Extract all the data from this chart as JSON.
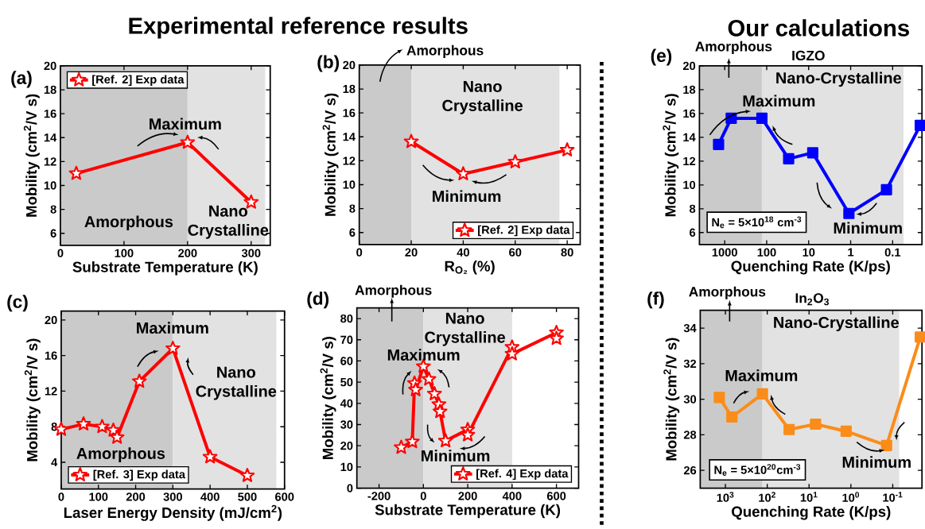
{
  "chart_data": [
    {
      "type": "line",
      "xlabel": "Substrate Temperature (K)",
      "ylabel": "Mobility (cm$^{2}$/V s)",
      "xlim": [
        0,
        330
      ],
      "xticks": [
        0,
        100,
        200,
        300
      ],
      "ylim": [
        5,
        20
      ],
      "yticks": [
        6,
        8,
        10,
        12,
        14,
        16,
        18,
        20
      ],
      "marker": "star",
      "legend": "top left",
      "series": [
        {
          "name": "[Ref. 2] Exp data",
          "color": "#ff0000",
          "x": [
            25,
            200,
            300
          ],
          "values": [
            11.0,
            13.6,
            8.6
          ]
        }
      ],
      "bands": [
        {
          "axis": "x",
          "from": 0,
          "to": 200,
          "color": "#cacaca"
        },
        {
          "axis": "x",
          "from": 200,
          "to": 322,
          "color": "#e2e2e2"
        }
      ],
      "annotations": [
        "Experimental reference results",
        "(a)",
        "Maximum",
        "Amorphous",
        "Nano Crystalline"
      ]
    },
    {
      "type": "line",
      "xlabel": "R$_{O₂}$ (%)",
      "ylabel": "Mobility (cm$^{2}$/V s)",
      "xlim": [
        0,
        85
      ],
      "xticks": [
        0,
        20,
        40,
        60,
        80
      ],
      "ylim": [
        5,
        20
      ],
      "yticks": [
        6,
        8,
        10,
        12,
        14,
        16,
        18,
        20
      ],
      "marker": "star",
      "legend": "bottom right",
      "series": [
        {
          "name": "[Ref. 2] Exp data",
          "color": "#ff0000",
          "x": [
            20,
            40,
            60,
            80
          ],
          "values": [
            13.6,
            10.9,
            11.9,
            12.9
          ]
        }
      ],
      "bands": [
        {
          "axis": "x",
          "from": 0,
          "to": 20,
          "color": "#cacaca"
        },
        {
          "axis": "x",
          "from": 20,
          "to": 77,
          "color": "#e2e2e2"
        }
      ],
      "annotations": [
        "(b)",
        "Amorphous",
        "Nano Crystalline",
        "Minimum"
      ]
    },
    {
      "type": "line",
      "xlabel": "Laser Energy Density (mJ/cm$^{2}$)",
      "ylabel": "Mobility (cm$^{2}$/V s)",
      "xlim": [
        0,
        600
      ],
      "xticks": [
        0,
        100,
        200,
        300,
        400,
        500,
        600
      ],
      "ylim": [
        1,
        21
      ],
      "yticks": [
        4,
        8,
        12,
        16,
        20
      ],
      "marker": "star",
      "legend": "bottom left",
      "series": [
        {
          "name": "[Ref. 3] Exp data",
          "color": "#ff0000",
          "x": [
            0,
            60,
            110,
            140,
            150,
            210,
            300,
            400,
            500
          ],
          "values": [
            7.7,
            8.3,
            8.0,
            7.6,
            6.8,
            13.1,
            16.8,
            4.6,
            2.5
          ]
        }
      ],
      "bands": [
        {
          "axis": "x",
          "from": 0,
          "to": 300,
          "color": "#cacaca"
        },
        {
          "axis": "x",
          "from": 300,
          "to": 578,
          "color": "#e2e2e2"
        }
      ],
      "annotations": [
        "(c)",
        "Maximum",
        "Nano Crystalline",
        "Amorphous"
      ]
    },
    {
      "type": "line",
      "xlabel": "Substrate Temperature (K)",
      "ylabel": "Mobility (cm$^{2}$/V s)",
      "xlim": [
        -300,
        700
      ],
      "xticks": [
        -200,
        0,
        200,
        400,
        600
      ],
      "ylim": [
        0,
        85
      ],
      "yticks": [
        0,
        10,
        20,
        30,
        40,
        50,
        60,
        70,
        80
      ],
      "marker": "star",
      "legend": "bottom right",
      "series": [
        {
          "name": "[Ref. 4] Exp data",
          "color": "#ff0000",
          "x": [
            -100,
            -50,
            -40,
            -35,
            0,
            25,
            50,
            70,
            75,
            100,
            200,
            200,
            400,
            400,
            600,
            600
          ],
          "values": [
            19.2,
            21.9,
            49.5,
            46.4,
            57.4,
            51.4,
            44.5,
            39.5,
            36.1,
            22.3,
            27.6,
            25.1,
            66.5,
            63.3,
            73.4,
            70.6
          ]
        }
      ],
      "bands": [
        {
          "axis": "x",
          "from": -300,
          "to": 0,
          "color": "#cacaca"
        },
        {
          "axis": "x",
          "from": 0,
          "to": 400,
          "color": "#e2e2e2"
        }
      ],
      "annotations": [
        "(d)",
        "Amorphous",
        "Nano Crystalline",
        "Maximum",
        "Minimum"
      ]
    },
    {
      "type": "line",
      "xlabel": "Quenching Rate (K/ps)",
      "ylabel": "Mobility (cm$^{2}$/V s)",
      "log": "x",
      "xlim": [
        4000,
        0.02
      ],
      "xticks": [
        1000,
        100,
        10,
        1,
        0.1
      ],
      "ylim": [
        5,
        20
      ],
      "yticks": [
        6,
        8,
        10,
        12,
        14,
        16,
        18,
        20
      ],
      "marker": "square",
      "series": [
        {
          "color": "#0000ff",
          "x": [
            1400,
            700,
            130,
            30,
            8,
            1.1,
            0.14,
            0.022
          ],
          "values": [
            13.4,
            15.6,
            15.6,
            12.2,
            12.7,
            7.6,
            9.6,
            15.0
          ]
        }
      ],
      "bands": [
        {
          "axis": "x",
          "from": 4000,
          "to": 130,
          "color": "#cacaca"
        },
        {
          "axis": "x",
          "from": 130,
          "to": 0.055,
          "color": "#e2e2e2"
        }
      ],
      "annotations": [
        "Our calculations",
        "(e)",
        "Amorphous",
        "IGZO",
        "N$_{e}$ = 5×10$^{18}$ cm$^{-3}$",
        "Maximum",
        "Minimum",
        "Nano-Crystalline"
      ]
    },
    {
      "type": "line",
      "xlabel": "Quenching Rate (K/ps)",
      "ylabel": "Mobility (cm$^{2}$/V s)",
      "log": "x",
      "xlim": [
        4000,
        0.02
      ],
      "xticks": [
        {
          "value": 1000,
          "label": "10$^{3}$"
        },
        {
          "value": 100,
          "label": "10$^{2}$"
        },
        {
          "value": 10,
          "label": "10$^{1}$"
        },
        {
          "value": 1,
          "label": "10$^{0}$"
        },
        {
          "value": 0.1,
          "label": "10$^{-1}$"
        }
      ],
      "ylim": [
        25,
        35
      ],
      "yticks": [
        26,
        28,
        30,
        32,
        34
      ],
      "marker": "square",
      "series": [
        {
          "color": "#fb8c19",
          "x": [
            1400,
            700,
            130,
            30,
            7,
            1.3,
            0.14,
            0.022
          ],
          "values": [
            30.1,
            29.0,
            30.3,
            28.3,
            28.6,
            28.2,
            27.4,
            33.5
          ]
        }
      ],
      "bands": [
        {
          "axis": "x",
          "from": 4000,
          "to": 130,
          "color": "#cacaca"
        },
        {
          "axis": "x",
          "from": 130,
          "to": 0.07,
          "color": "#e2e2e2"
        }
      ],
      "annotations": [
        "(f)",
        "Amorphous",
        "In$_{2}$O$_{3}$",
        "N$_{e}$ = 5×10$^{20}$cm$^{-3}$",
        "Maximum",
        "Minimum",
        "Nano-Crystalline"
      ]
    }
  ]
}
